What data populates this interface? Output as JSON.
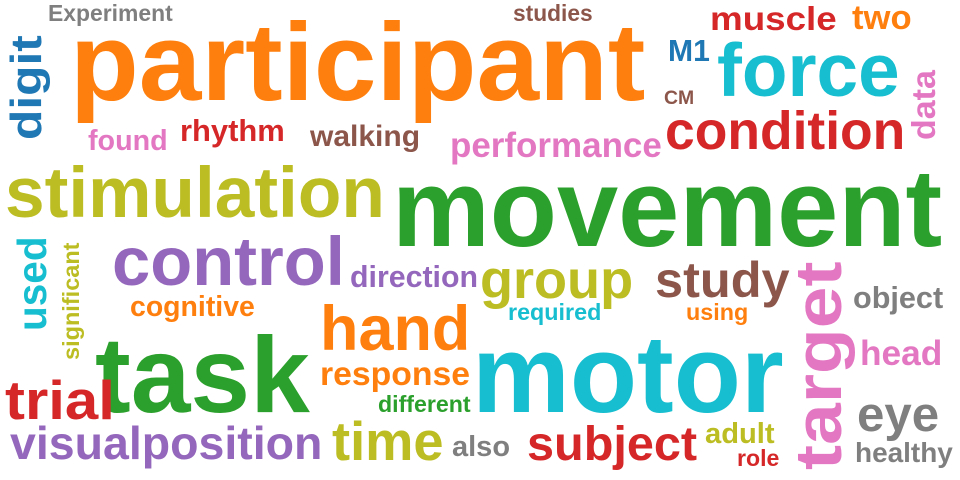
{
  "words": [
    {
      "id": "participant",
      "text": "participant",
      "color": "#ff7f0e"
    },
    {
      "id": "movement",
      "text": "movement",
      "color": "#2ca02c"
    },
    {
      "id": "motor",
      "text": "motor",
      "color": "#17becf"
    },
    {
      "id": "task",
      "text": "task",
      "color": "#2ca02c"
    },
    {
      "id": "stimulation",
      "text": "stimulation",
      "color": "#bcbd22"
    },
    {
      "id": "control",
      "text": "control",
      "color": "#9467bd"
    },
    {
      "id": "force",
      "text": "force",
      "color": "#17becf"
    },
    {
      "id": "condition",
      "text": "condition",
      "color": "#d62728"
    },
    {
      "id": "hand",
      "text": "hand",
      "color": "#ff7f0e"
    },
    {
      "id": "group",
      "text": "group",
      "color": "#bcbd22"
    },
    {
      "id": "study",
      "text": "study",
      "color": "#8c564b"
    },
    {
      "id": "target",
      "text": "target",
      "color": "#e377c2"
    },
    {
      "id": "visualposition",
      "text": "visualposition",
      "color": "#9467bd"
    },
    {
      "id": "time",
      "text": "time",
      "color": "#bcbd22"
    },
    {
      "id": "subject",
      "text": "subject",
      "color": "#d62728"
    },
    {
      "id": "trial",
      "text": "trial",
      "color": "#d62728"
    },
    {
      "id": "eye",
      "text": "eye",
      "color": "#7f7f7f"
    },
    {
      "id": "performance",
      "text": "performance",
      "color": "#e377c2"
    },
    {
      "id": "response",
      "text": "response",
      "color": "#ff7f0e"
    },
    {
      "id": "walking",
      "text": "walking",
      "color": "#8c564b"
    },
    {
      "id": "rhythm",
      "text": "rhythm",
      "color": "#d62728"
    },
    {
      "id": "found",
      "text": "found",
      "color": "#e377c2"
    },
    {
      "id": "direction",
      "text": "direction",
      "color": "#9467bd"
    },
    {
      "id": "cognitive",
      "text": "cognitive",
      "color": "#ff7f0e"
    },
    {
      "id": "digit",
      "text": "digit",
      "color": "#1f77b4"
    },
    {
      "id": "used",
      "text": "used",
      "color": "#17becf"
    },
    {
      "id": "significant",
      "text": "significant",
      "color": "#bcbd22"
    },
    {
      "id": "experiment",
      "text": "Experiment",
      "color": "#7f7f7f"
    },
    {
      "id": "studies",
      "text": "studies",
      "color": "#8c564b"
    },
    {
      "id": "muscle",
      "text": "muscle",
      "color": "#d62728"
    },
    {
      "id": "two",
      "text": "two",
      "color": "#ff7f0e"
    },
    {
      "id": "m1",
      "text": "M1",
      "color": "#1f77b4"
    },
    {
      "id": "cm",
      "text": "CM",
      "color": "#8c564b"
    },
    {
      "id": "data",
      "text": "data",
      "color": "#e377c2"
    },
    {
      "id": "object",
      "text": "object",
      "color": "#7f7f7f"
    },
    {
      "id": "head",
      "text": "head",
      "color": "#e377c2"
    },
    {
      "id": "healthy",
      "text": "healthy",
      "color": "#7f7f7f"
    },
    {
      "id": "required",
      "text": "required",
      "color": "#17becf"
    },
    {
      "id": "using",
      "text": "using",
      "color": "#ff7f0e"
    },
    {
      "id": "different",
      "text": "different",
      "color": "#2ca02c"
    },
    {
      "id": "also",
      "text": "also",
      "color": "#7f7f7f"
    },
    {
      "id": "adult",
      "text": "adult",
      "color": "#bcbd22"
    },
    {
      "id": "role",
      "text": "role",
      "color": "#d62728"
    }
  ]
}
